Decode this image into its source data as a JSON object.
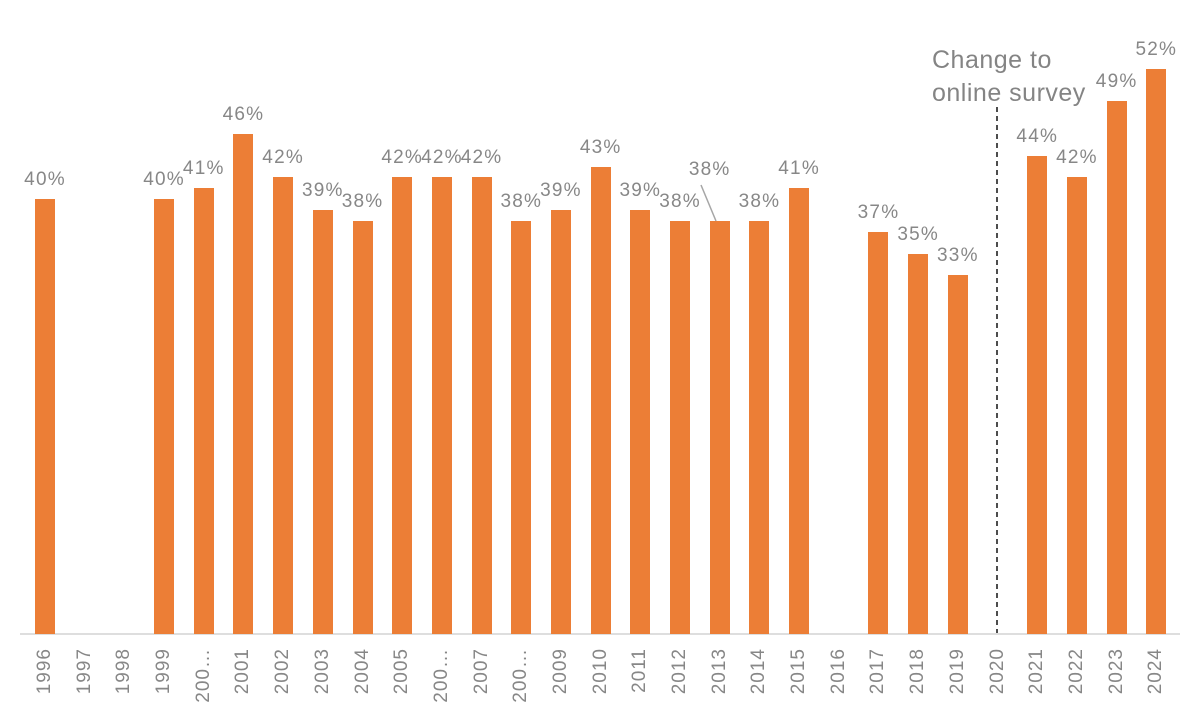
{
  "chart_data": {
    "type": "bar",
    "title": "",
    "xlabel": "",
    "ylabel": "",
    "ylim": [
      0,
      55
    ],
    "grid": false,
    "legend": false,
    "value_suffix": "%",
    "x_tick_rotation": 90,
    "points": [
      {
        "year": "1996",
        "axis_label": "1996",
        "value": 40,
        "data_label": "40%"
      },
      {
        "year": "1997",
        "axis_label": "1997",
        "value": null,
        "data_label": null
      },
      {
        "year": "1998",
        "axis_label": "1998",
        "value": null,
        "data_label": null
      },
      {
        "year": "1999",
        "axis_label": "1999",
        "value": 40,
        "data_label": "40%"
      },
      {
        "year": "2000",
        "axis_label": "200…",
        "value": 41,
        "data_label": "41%"
      },
      {
        "year": "2001",
        "axis_label": "2001",
        "value": 46,
        "data_label": "46%"
      },
      {
        "year": "2002",
        "axis_label": "2002",
        "value": 42,
        "data_label": "42%"
      },
      {
        "year": "2003",
        "axis_label": "2003",
        "value": 39,
        "data_label": "39%"
      },
      {
        "year": "2004",
        "axis_label": "2004",
        "value": 38,
        "data_label": "38%"
      },
      {
        "year": "2005",
        "axis_label": "2005",
        "value": 42,
        "data_label": "42%"
      },
      {
        "year": "2006",
        "axis_label": "200…",
        "value": 42,
        "data_label": "42%"
      },
      {
        "year": "2007",
        "axis_label": "2007",
        "value": 42,
        "data_label": "42%"
      },
      {
        "year": "2008",
        "axis_label": "200…",
        "value": 38,
        "data_label": "38%"
      },
      {
        "year": "2009",
        "axis_label": "2009",
        "value": 39,
        "data_label": "39%"
      },
      {
        "year": "2010",
        "axis_label": "2010",
        "value": 43,
        "data_label": "43%"
      },
      {
        "year": "2011",
        "axis_label": "2011",
        "value": 39,
        "data_label": "39%"
      },
      {
        "year": "2012",
        "axis_label": "2012",
        "value": 38,
        "data_label": "38%"
      },
      {
        "year": "2013",
        "axis_label": "2013",
        "value": 38,
        "data_label": "38%",
        "callout": true
      },
      {
        "year": "2014",
        "axis_label": "2014",
        "value": 38,
        "data_label": "38%"
      },
      {
        "year": "2015",
        "axis_label": "2015",
        "value": 41,
        "data_label": "41%"
      },
      {
        "year": "2016",
        "axis_label": "2016",
        "value": null,
        "data_label": null
      },
      {
        "year": "2017",
        "axis_label": "2017",
        "value": 37,
        "data_label": "37%"
      },
      {
        "year": "2018",
        "axis_label": "2018",
        "value": 35,
        "data_label": "35%"
      },
      {
        "year": "2019",
        "axis_label": "2019",
        "value": 33,
        "data_label": "33%"
      },
      {
        "year": "2020",
        "axis_label": "2020",
        "value": null,
        "data_label": null
      },
      {
        "year": "2021",
        "axis_label": "2021",
        "value": 44,
        "data_label": "44%"
      },
      {
        "year": "2022",
        "axis_label": "2022",
        "value": 42,
        "data_label": "42%"
      },
      {
        "year": "2023",
        "axis_label": "2023",
        "value": 49,
        "data_label": "49%"
      },
      {
        "year": "2024",
        "axis_label": "2024",
        "value": 52,
        "data_label": "52%"
      }
    ],
    "annotation": {
      "line1": "Change to",
      "line2": "online survey",
      "at_year": "2020"
    },
    "callout": {
      "year": "2013",
      "data_label": "38%",
      "style": "raised label with leader line to bar top"
    },
    "colors": {
      "bar": "#EC7E36",
      "labels": "#878787",
      "annotation": "#848484",
      "axis_line": "#DEDEDE",
      "dashed_line": "#4D4D4D",
      "leader_line": "#A6A6A6"
    }
  }
}
